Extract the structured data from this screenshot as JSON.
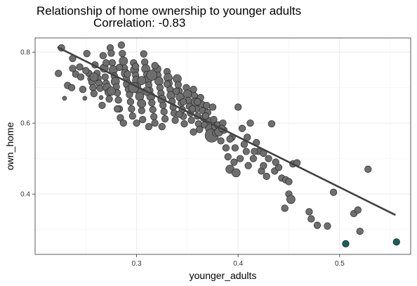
{
  "chart_data": {
    "type": "scatter",
    "title": "Relationship of home ownership to younger adults",
    "subtitle": "Correlation: -0.83",
    "xlabel": "younger_adults",
    "ylabel": "own_home",
    "xlim": [
      0.2,
      0.57
    ],
    "ylim": [
      0.23,
      0.84
    ],
    "x_ticks": [
      0.3,
      0.4,
      0.5
    ],
    "y_ticks": [
      0.4,
      0.6,
      0.8
    ],
    "x_tick_labels": [
      "0.3",
      "0.4",
      "0.5"
    ],
    "y_tick_labels": [
      "0.4",
      "0.6",
      "0.8"
    ],
    "grid": true,
    "trend_line": {
      "x": [
        0.222,
        0.555
      ],
      "y": [
        0.814,
        0.341
      ]
    },
    "colors": {
      "point": "#6e6e6e",
      "highlight": "#1b5e5a",
      "stroke": "#1a1a1a",
      "line": "#404040",
      "grid": "#ebebeb",
      "grid_minor": "#f4f4f4"
    },
    "points": [
      [
        0.226,
        0.812,
        2
      ],
      [
        0.223,
        0.74,
        2
      ],
      [
        0.232,
        0.706,
        2
      ],
      [
        0.229,
        0.67,
        1
      ],
      [
        0.237,
        0.754,
        2
      ],
      [
        0.24,
        0.738,
        2
      ],
      [
        0.236,
        0.7,
        2
      ],
      [
        0.245,
        0.73,
        2
      ],
      [
        0.247,
        0.695,
        2
      ],
      [
        0.249,
        0.67,
        1
      ],
      [
        0.251,
        0.796,
        2
      ],
      [
        0.253,
        0.74,
        2
      ],
      [
        0.255,
        0.725,
        2
      ],
      [
        0.256,
        0.715,
        2
      ],
      [
        0.257,
        0.7,
        2
      ],
      [
        0.258,
        0.683,
        2
      ],
      [
        0.259,
        0.764,
        2
      ],
      [
        0.261,
        0.74,
        2
      ],
      [
        0.262,
        0.726,
        2
      ],
      [
        0.263,
        0.712,
        2
      ],
      [
        0.264,
        0.698,
        2
      ],
      [
        0.265,
        0.672,
        1
      ],
      [
        0.266,
        0.65,
        2
      ],
      [
        0.267,
        0.79,
        2
      ],
      [
        0.268,
        0.755,
        3
      ],
      [
        0.269,
        0.73,
        2
      ],
      [
        0.27,
        0.712,
        2
      ],
      [
        0.271,
        0.7,
        3
      ],
      [
        0.272,
        0.686,
        2
      ],
      [
        0.273,
        0.668,
        2
      ],
      [
        0.274,
        0.812,
        2
      ],
      [
        0.275,
        0.797,
        2
      ],
      [
        0.276,
        0.77,
        2
      ],
      [
        0.277,
        0.75,
        3
      ],
      [
        0.278,
        0.733,
        2
      ],
      [
        0.279,
        0.717,
        3
      ],
      [
        0.28,
        0.702,
        2
      ],
      [
        0.281,
        0.685,
        2
      ],
      [
        0.282,
        0.665,
        2
      ],
      [
        0.283,
        0.64,
        2
      ],
      [
        0.284,
        0.615,
        2
      ],
      [
        0.285,
        0.82,
        2
      ],
      [
        0.286,
        0.796,
        2
      ],
      [
        0.287,
        0.775,
        3
      ],
      [
        0.288,
        0.755,
        2
      ],
      [
        0.289,
        0.74,
        3
      ],
      [
        0.29,
        0.725,
        2
      ],
      [
        0.291,
        0.71,
        3
      ],
      [
        0.292,
        0.695,
        2
      ],
      [
        0.293,
        0.68,
        2
      ],
      [
        0.294,
        0.66,
        2
      ],
      [
        0.295,
        0.64,
        2
      ],
      [
        0.296,
        0.62,
        2
      ],
      [
        0.297,
        0.77,
        2
      ],
      [
        0.298,
        0.75,
        3
      ],
      [
        0.299,
        0.735,
        2
      ],
      [
        0.3,
        0.72,
        3
      ],
      [
        0.301,
        0.705,
        2
      ],
      [
        0.302,
        0.69,
        2
      ],
      [
        0.303,
        0.675,
        3
      ],
      [
        0.304,
        0.655,
        2
      ],
      [
        0.305,
        0.635,
        2
      ],
      [
        0.306,
        0.61,
        2
      ],
      [
        0.307,
        0.795,
        2
      ],
      [
        0.308,
        0.772,
        2
      ],
      [
        0.309,
        0.753,
        3
      ],
      [
        0.31,
        0.737,
        2
      ],
      [
        0.311,
        0.722,
        3
      ],
      [
        0.312,
        0.707,
        2
      ],
      [
        0.313,
        0.692,
        2
      ],
      [
        0.314,
        0.675,
        3
      ],
      [
        0.315,
        0.657,
        2
      ],
      [
        0.316,
        0.638,
        2
      ],
      [
        0.317,
        0.618,
        2
      ],
      [
        0.318,
        0.6,
        2
      ],
      [
        0.32,
        0.752,
        3
      ],
      [
        0.321,
        0.735,
        2
      ],
      [
        0.322,
        0.718,
        3
      ],
      [
        0.323,
        0.7,
        2
      ],
      [
        0.324,
        0.684,
        2
      ],
      [
        0.325,
        0.667,
        3
      ],
      [
        0.326,
        0.65,
        2
      ],
      [
        0.327,
        0.632,
        2
      ],
      [
        0.328,
        0.612,
        2
      ],
      [
        0.33,
        0.745,
        2
      ],
      [
        0.331,
        0.728,
        3
      ],
      [
        0.332,
        0.712,
        2
      ],
      [
        0.333,
        0.695,
        2
      ],
      [
        0.334,
        0.678,
        3
      ],
      [
        0.335,
        0.661,
        2
      ],
      [
        0.336,
        0.645,
        2
      ],
      [
        0.337,
        0.628,
        2
      ],
      [
        0.338,
        0.608,
        2
      ],
      [
        0.34,
        0.725,
        3
      ],
      [
        0.341,
        0.708,
        2
      ],
      [
        0.342,
        0.69,
        2
      ],
      [
        0.343,
        0.673,
        3
      ],
      [
        0.344,
        0.656,
        2
      ],
      [
        0.345,
        0.638,
        2
      ],
      [
        0.346,
        0.619,
        2
      ],
      [
        0.347,
        0.598,
        2
      ],
      [
        0.349,
        0.7,
        2
      ],
      [
        0.35,
        0.682,
        3
      ],
      [
        0.351,
        0.664,
        2
      ],
      [
        0.352,
        0.647,
        2
      ],
      [
        0.353,
        0.628,
        2
      ],
      [
        0.354,
        0.608,
        2
      ],
      [
        0.356,
        0.695,
        2
      ],
      [
        0.357,
        0.677,
        2
      ],
      [
        0.358,
        0.659,
        3
      ],
      [
        0.359,
        0.64,
        2
      ],
      [
        0.36,
        0.62,
        2
      ],
      [
        0.361,
        0.598,
        2
      ],
      [
        0.363,
        0.672,
        2
      ],
      [
        0.364,
        0.654,
        2
      ],
      [
        0.365,
        0.635,
        2
      ],
      [
        0.366,
        0.614,
        2
      ],
      [
        0.367,
        0.595,
        2
      ],
      [
        0.369,
        0.65,
        2
      ],
      [
        0.37,
        0.63,
        2
      ],
      [
        0.371,
        0.607,
        2
      ],
      [
        0.372,
        0.584,
        3
      ],
      [
        0.374,
        0.565,
        5
      ],
      [
        0.376,
        0.61,
        2
      ],
      [
        0.377,
        0.59,
        2
      ],
      [
        0.378,
        0.572,
        2
      ],
      [
        0.38,
        0.595,
        2
      ],
      [
        0.381,
        0.575,
        3
      ],
      [
        0.383,
        0.55,
        2
      ],
      [
        0.385,
        0.6,
        2
      ],
      [
        0.386,
        0.58,
        2
      ],
      [
        0.388,
        0.53,
        2
      ],
      [
        0.39,
        0.505,
        2
      ],
      [
        0.392,
        0.47,
        3
      ],
      [
        0.394,
        0.56,
        2
      ],
      [
        0.396,
        0.49,
        2
      ],
      [
        0.398,
        0.46,
        3
      ],
      [
        0.4,
        0.645,
        2
      ],
      [
        0.402,
        0.5,
        2
      ],
      [
        0.404,
        0.585,
        2
      ],
      [
        0.406,
        0.54,
        2
      ],
      [
        0.408,
        0.52,
        2
      ],
      [
        0.41,
        0.48,
        2
      ],
      [
        0.412,
        0.6,
        2
      ],
      [
        0.415,
        0.5,
        2
      ],
      [
        0.418,
        0.545,
        2
      ],
      [
        0.42,
        0.52,
        2
      ],
      [
        0.423,
        0.465,
        2
      ],
      [
        0.425,
        0.48,
        2
      ],
      [
        0.428,
        0.45,
        2
      ],
      [
        0.43,
        0.5,
        2
      ],
      [
        0.433,
        0.598,
        2
      ],
      [
        0.436,
        0.465,
        2
      ],
      [
        0.44,
        0.475,
        2
      ],
      [
        0.443,
        0.445,
        2
      ],
      [
        0.447,
        0.44,
        2
      ],
      [
        0.45,
        0.435,
        2
      ],
      [
        0.454,
        0.485,
        2
      ],
      [
        0.458,
        0.488,
        2
      ],
      [
        0.45,
        0.4,
        2
      ],
      [
        0.452,
        0.385,
        3
      ],
      [
        0.446,
        0.36,
        2
      ],
      [
        0.47,
        0.35,
        2
      ],
      [
        0.472,
        0.33,
        2
      ],
      [
        0.478,
        0.312,
        2
      ],
      [
        0.488,
        0.31,
        2
      ],
      [
        0.494,
        0.405,
        2
      ],
      [
        0.506,
        0.26,
        2,
        "h"
      ],
      [
        0.514,
        0.345,
        2
      ],
      [
        0.518,
        0.355,
        2
      ],
      [
        0.52,
        0.295,
        2
      ],
      [
        0.528,
        0.47,
        2
      ],
      [
        0.556,
        0.265,
        2,
        "h"
      ],
      [
        0.237,
        0.782,
        2
      ],
      [
        0.244,
        0.758,
        2
      ],
      [
        0.25,
        0.748,
        2
      ],
      [
        0.258,
        0.73,
        3
      ],
      [
        0.27,
        0.77,
        2
      ],
      [
        0.283,
        0.757,
        2
      ],
      [
        0.291,
        0.738,
        2
      ],
      [
        0.299,
        0.76,
        2
      ],
      [
        0.318,
        0.762,
        2
      ],
      [
        0.33,
        0.71,
        2
      ],
      [
        0.339,
        0.69,
        2
      ],
      [
        0.346,
        0.66,
        2
      ],
      [
        0.355,
        0.64,
        2
      ],
      [
        0.36,
        0.66,
        2
      ],
      [
        0.368,
        0.62,
        2
      ],
      [
        0.375,
        0.645,
        2
      ],
      [
        0.392,
        0.555,
        2
      ],
      [
        0.397,
        0.53,
        2
      ],
      [
        0.409,
        0.56,
        2
      ],
      [
        0.416,
        0.52,
        2
      ],
      [
        0.425,
        0.515,
        2
      ],
      [
        0.437,
        0.49,
        2
      ],
      [
        0.281,
        0.64,
        2
      ],
      [
        0.287,
        0.6,
        2
      ],
      [
        0.3,
        0.6,
        2
      ],
      [
        0.312,
        0.59,
        2
      ],
      [
        0.325,
        0.59,
        2
      ],
      [
        0.305,
        0.655,
        3
      ],
      [
        0.342,
        0.625,
        2
      ],
      [
        0.356,
        0.575,
        2
      ],
      [
        0.362,
        0.582,
        2
      ],
      [
        0.384,
        0.585,
        2
      ],
      [
        0.297,
        0.7,
        4
      ],
      [
        0.305,
        0.72,
        3
      ],
      [
        0.315,
        0.735,
        4
      ],
      [
        0.31,
        0.69,
        3
      ],
      [
        0.275,
        0.69,
        3
      ]
    ]
  }
}
